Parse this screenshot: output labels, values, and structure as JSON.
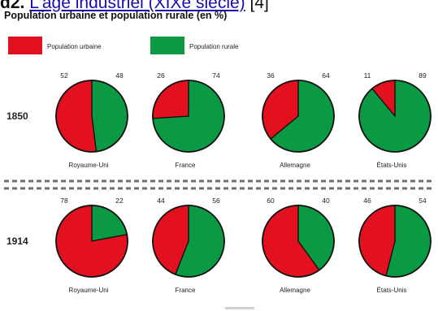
{
  "header": {
    "prefix": "d2.",
    "link_text": "L'âge industriel (XIXe siècle)",
    "suffix": "[4]"
  },
  "chart_data": {
    "type": "pie",
    "title": "Population urbaine et population rurale (en %)",
    "legend": [
      {
        "name": "Population urbaine",
        "color": "#e3101f"
      },
      {
        "name": "Population rurale",
        "color": "#0a9a44"
      }
    ],
    "legend_placement": "top-left",
    "rows": [
      {
        "year": "1850",
        "pies": [
          {
            "label": "Royaume-Uni",
            "urbaine": 52,
            "rurale": 48
          },
          {
            "label": "France",
            "urbaine": 26,
            "rurale": 74
          },
          {
            "label": "Allemagne",
            "urbaine": 36,
            "rurale": 64
          },
          {
            "label": "États-Unis",
            "urbaine": 11,
            "rurale": 89
          }
        ]
      },
      {
        "year": "1914",
        "pies": [
          {
            "label": "Royaume-Uni",
            "urbaine": 78,
            "rurale": 22
          },
          {
            "label": "France",
            "urbaine": 44,
            "rurale": 56
          },
          {
            "label": "Allemagne",
            "urbaine": 60,
            "rurale": 40
          },
          {
            "label": "États-Unis",
            "urbaine": 46,
            "rurale": 54
          }
        ]
      }
    ]
  }
}
